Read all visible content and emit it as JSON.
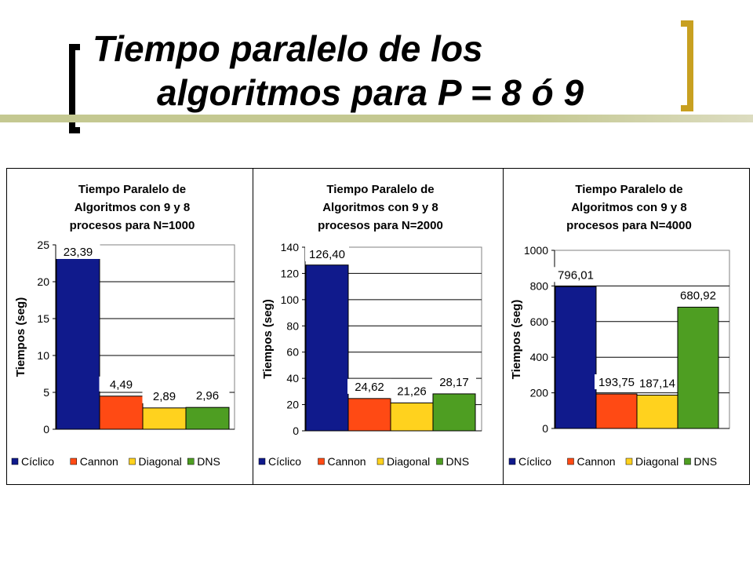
{
  "slide": {
    "title_line1": "Tiempo paralelo de los",
    "title_line2": "algoritmos para P = 8 ó 9"
  },
  "colors": {
    "Cíclico": "#101a8c",
    "Cannon": "#ff4a14",
    "Diagonal": "#ffd21e",
    "DNS": "#4e9e22",
    "frame_accent": "#c8a020"
  },
  "chart_data": [
    {
      "type": "bar",
      "title": [
        "Tiempo Paralelo de",
        "Algoritmos con 9 y 8",
        "procesos para N=1000"
      ],
      "ylabel": "Tiempos (seg)",
      "categories": [
        "Cíclico",
        "Cannon",
        "Diagonal",
        "DNS"
      ],
      "values": [
        23.39,
        4.49,
        2.89,
        2.96
      ],
      "data_labels": [
        "23,39",
        "4,49",
        "2,89",
        "2,96"
      ],
      "ylim": [
        0,
        25
      ],
      "yticks": [
        "0",
        "5",
        "10",
        "15",
        "20",
        "25"
      ],
      "grid": true,
      "legend": [
        "Cíclico",
        "Cannon",
        "Diagonal",
        "DNS"
      ],
      "legend_position": "bottom"
    },
    {
      "type": "bar",
      "title": [
        "Tiempo Paralelo de",
        "Algoritmos con 9 y 8",
        "procesos para N=2000"
      ],
      "ylabel": "Tiempos (seg)",
      "categories": [
        "Cíclico",
        "Cannon",
        "Diagonal",
        "DNS"
      ],
      "values": [
        126.4,
        24.62,
        21.26,
        28.17
      ],
      "data_labels": [
        "126,40",
        "24,62",
        "21,26",
        "28,17"
      ],
      "ylim": [
        0,
        140
      ],
      "yticks": [
        "0",
        "20",
        "40",
        "60",
        "80",
        "100",
        "120",
        "140"
      ],
      "grid": true,
      "legend": [
        "Cíclico",
        "Cannon",
        "Diagonal",
        "DNS"
      ],
      "legend_position": "bottom"
    },
    {
      "type": "bar",
      "title": [
        "Tiempo Paralelo de",
        "Algoritmos con 9 y 8",
        "procesos para N=4000"
      ],
      "ylabel": "Tiempos (seg)",
      "categories": [
        "Cíclico",
        "Cannon",
        "Diagonal",
        "DNS"
      ],
      "values": [
        796.01,
        193.75,
        187.14,
        680.92
      ],
      "data_labels": [
        "796,01",
        "193,75",
        "187,14",
        "680,92"
      ],
      "ylim": [
        0,
        1000
      ],
      "yticks": [
        "0",
        "200",
        "400",
        "600",
        "800",
        "1000"
      ],
      "grid": true,
      "legend": [
        "Cíclico",
        "Cannon",
        "Diagonal",
        "DNS"
      ],
      "legend_position": "bottom"
    }
  ]
}
